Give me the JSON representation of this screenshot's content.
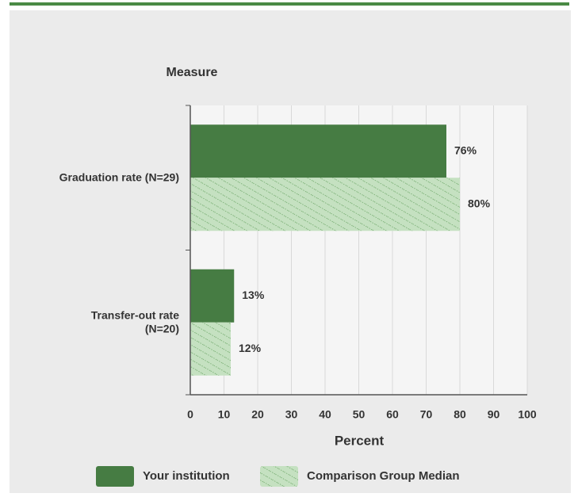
{
  "chart_data": {
    "type": "hbar",
    "title": "Measure",
    "x_label": "Percent",
    "categories": [
      [
        "Graduation rate (N=29)"
      ],
      [
        "Transfer-out rate",
        "(N=20)"
      ]
    ],
    "series": [
      {
        "name": "Your institution",
        "color": "#467c43",
        "values": [
          76,
          13
        ],
        "value_labels": [
          "76%",
          "13%"
        ]
      },
      {
        "name": "Comparison Group Median",
        "color": "#c5e1c1",
        "hatch": true,
        "values": [
          80,
          12
        ],
        "value_labels": [
          "80%",
          "12%"
        ]
      }
    ],
    "xlim": [
      0,
      100
    ],
    "xticks": [
      0,
      10,
      20,
      30,
      40,
      50,
      60,
      70,
      80,
      90,
      100
    ],
    "grid": true
  }
}
